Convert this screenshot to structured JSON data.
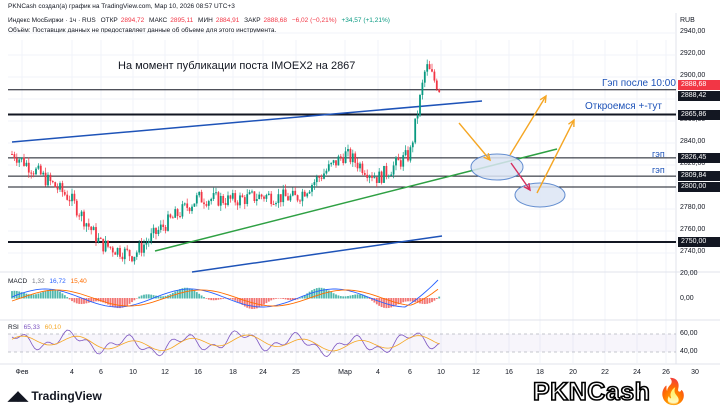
{
  "header": {
    "line1": "PKNCash создал(а) график на TradingView.com, Мар 10, 2026 08:57 UTC+3",
    "symbol": "Индекс МосБиржи · 1ч · RUS",
    "o_label": "ОТКР",
    "o_value": "2894,72",
    "h_label": "МАКС",
    "h_value": "2895,11",
    "l_label": "МИН",
    "l_value": "2884,91",
    "c_label": "ЗАКР",
    "c_value": "2888,68",
    "change": "−6,02 (−0,21%)",
    "change2": "+34,57 (+1,21%)",
    "volume_note": "Объём: Поставщик данных не предоставляет данные об объеме для этого инструмента."
  },
  "annotations": {
    "main_note": "На момент публикации поста IMOEX2 на 2867",
    "gap_after": "Гэп после 10:00",
    "open_here": "Откроемся +-тут",
    "gap1": "гэп",
    "gap2": "гэп"
  },
  "currency": "RUB",
  "price_tags": [
    {
      "value": "2888,68",
      "color": "#f23645"
    },
    {
      "value": "2888,42",
      "color": "#131722"
    },
    {
      "value": "2865,86",
      "color": "#131722"
    },
    {
      "value": "2826,45",
      "color": "#131722"
    },
    {
      "value": "2809,84",
      "color": "#131722"
    },
    {
      "value": "2800,00",
      "color": "#131722"
    },
    {
      "value": "2750,00",
      "color": "#131722"
    }
  ],
  "y_axis_labels": [
    "2940,00",
    "2920,00",
    "2900,00",
    "2880,00",
    "2860,00",
    "2840,00",
    "2820,00",
    "2800,00",
    "2780,00",
    "2760,00",
    "2740,00"
  ],
  "x_axis_labels": [
    "Фев",
    "4",
    "6",
    "10",
    "12",
    "16",
    "18",
    "24",
    "25",
    "Мар",
    "4",
    "6",
    "10",
    "12",
    "16",
    "18",
    "20",
    "22",
    "24",
    "26",
    "30"
  ],
  "macd": {
    "label": "MACD",
    "v1": "1,32",
    "v2": "16,72",
    "v3": "15,40",
    "axis": [
      "20,00",
      "0,00"
    ]
  },
  "rsi": {
    "label": "RSI",
    "v1": "65,33",
    "v2": "60,10",
    "axis": [
      "60,00",
      "40,00"
    ]
  },
  "footer": {
    "logo": "TradingView",
    "brand": "PKNCash"
  },
  "colors": {
    "up": "#089981",
    "down": "#f23645",
    "trend_blue": "#1e53b8",
    "trend_green": "#2ea043",
    "arrow_orange": "#f5a623",
    "arrow_pink": "#d62e5c",
    "macd_line": "#2962ff",
    "signal_line": "#ff6d00",
    "rsi_line": "#7e57c2"
  },
  "chart_data": {
    "type": "candlestick",
    "title": "",
    "ylabel": "RUB",
    "ylim": [
      2732,
      2948
    ],
    "grid": true,
    "approx_close_series": [
      {
        "x": "Фев",
        "y": 2830
      },
      {
        "x": "4",
        "y": 2790
      },
      {
        "x": "6",
        "y": 2748
      },
      {
        "x": "10",
        "y": 2738
      },
      {
        "x": "12",
        "y": 2766
      },
      {
        "x": "16",
        "y": 2790
      },
      {
        "x": "18",
        "y": 2788
      },
      {
        "x": "24",
        "y": 2792
      },
      {
        "x": "25",
        "y": 2790
      },
      {
        "x": "Мар",
        "y": 2830
      },
      {
        "x": "4",
        "y": 2808
      },
      {
        "x": "6",
        "y": 2830
      },
      {
        "x": "9",
        "y": 2910
      },
      {
        "x": "10",
        "y": 2888.68
      }
    ],
    "horizontal_levels": [
      2888.42,
      2865.86,
      2826.45,
      2809.84,
      2800.0,
      2750.0
    ],
    "macd": {
      "macd": 1.32,
      "signal": 16.72,
      "hist": 15.4
    },
    "rsi": {
      "value": 65.33,
      "ma": 60.1
    }
  }
}
